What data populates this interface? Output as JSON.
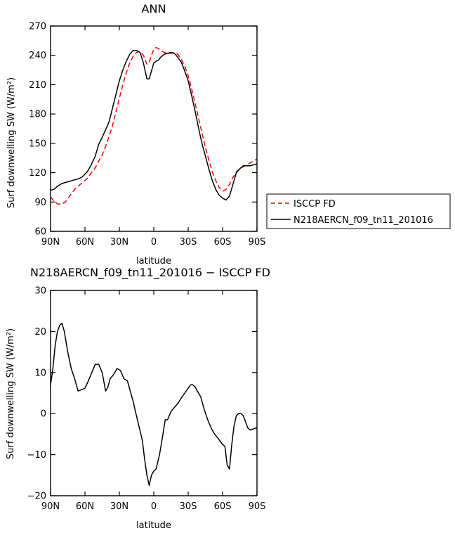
{
  "chart_data": [
    {
      "type": "line",
      "title": "ANN",
      "xlabel": "latitude",
      "ylabel": "Surf downwelling SW (W/m²)",
      "ylim": [
        60,
        270
      ],
      "yticks": [
        60,
        90,
        120,
        150,
        180,
        210,
        240,
        270
      ],
      "xlim": [
        90,
        -90
      ],
      "xticks": [
        90,
        60,
        30,
        0,
        -30,
        -60,
        -90
      ],
      "xtick_labels": [
        "90N",
        "60N",
        "30N",
        "0",
        "30S",
        "60S",
        "90S"
      ],
      "grid": false,
      "legend_placement": "right",
      "series": [
        {
          "name": "ISCCP FD",
          "color": "#ff0000",
          "dash": "dashed",
          "x": [
            90,
            87,
            84,
            80,
            77,
            74,
            71,
            68,
            65,
            62,
            58,
            55,
            51,
            48,
            45,
            42,
            39,
            36,
            33,
            30,
            27,
            24,
            21,
            18,
            15,
            12,
            9,
            6,
            4,
            2,
            0,
            -2,
            -4,
            -6,
            -9,
            -12,
            -15,
            -18,
            -21,
            -24,
            -27,
            -30,
            -33,
            -36,
            -39,
            -42,
            -45,
            -48,
            -51,
            -54,
            -57,
            -60,
            -63,
            -66,
            -69,
            -72,
            -75,
            -78,
            -81,
            -84,
            -87,
            -90
          ],
          "y": [
            95,
            91,
            88,
            88,
            90,
            95,
            100,
            104,
            107,
            110,
            114,
            119,
            125,
            132,
            138,
            147,
            157,
            168,
            182,
            196,
            210,
            222,
            232,
            239,
            243,
            244,
            240,
            231,
            233,
            240,
            246,
            248,
            247,
            245,
            243,
            242,
            242,
            243,
            241,
            236,
            229,
            219,
            206,
            191,
            176,
            161,
            146,
            133,
            121,
            112,
            105,
            101,
            103,
            108,
            115,
            121,
            124,
            126,
            128,
            130,
            132,
            134
          ]
        },
        {
          "name": "N218AERCN_f09_tn11_201016",
          "color": "#000000",
          "dash": "solid",
          "x": [
            90,
            87,
            84,
            80,
            77,
            74,
            71,
            68,
            65,
            62,
            58,
            55,
            51,
            48,
            45,
            42,
            39,
            36,
            33,
            30,
            27,
            24,
            21,
            18,
            15,
            12,
            9,
            6,
            4,
            2,
            0,
            -2,
            -4,
            -6,
            -9,
            -12,
            -15,
            -18,
            -21,
            -24,
            -27,
            -30,
            -33,
            -36,
            -39,
            -42,
            -45,
            -48,
            -51,
            -54,
            -57,
            -60,
            -63,
            -66,
            -69,
            -72,
            -75,
            -78,
            -81,
            -84,
            -87,
            -90
          ],
          "y": [
            102,
            103,
            106,
            109,
            110,
            111,
            112,
            113,
            114,
            116,
            121,
            127,
            137,
            149,
            156,
            164,
            172,
            186,
            200,
            214,
            225,
            234,
            241,
            245,
            245,
            243,
            232,
            216,
            216,
            224,
            232,
            234,
            235,
            238,
            241,
            242,
            243,
            242,
            238,
            233,
            224,
            214,
            199,
            183,
            166,
            150,
            137,
            124,
            112,
            103,
            97,
            94,
            92,
            96,
            108,
            120,
            124,
            127,
            127,
            127,
            128,
            129
          ]
        }
      ]
    },
    {
      "type": "line",
      "title": "N218AERCN_f09_tn11_201016 − ISCCP FD",
      "xlabel": "latitude",
      "ylabel": "Surf downwelling SW (W/m²)",
      "ylim": [
        -20,
        30
      ],
      "yticks": [
        -20,
        -10,
        0,
        10,
        20,
        30
      ],
      "ytick_labels": [
        "−20",
        "−10",
        "0",
        "10",
        "20",
        "30"
      ],
      "xlim": [
        90,
        -90
      ],
      "xticks": [
        90,
        60,
        30,
        0,
        -30,
        -60,
        -90
      ],
      "xtick_labels": [
        "90N",
        "60N",
        "30N",
        "0",
        "30S",
        "60S",
        "90S"
      ],
      "grid": false,
      "series": [
        {
          "color": "#000000",
          "dash": "solid",
          "x": [
            90,
            88,
            86,
            84,
            82,
            80,
            78,
            75,
            72,
            69,
            66,
            63,
            60,
            57,
            54,
            51,
            48,
            45,
            42,
            40,
            38,
            35,
            32,
            29,
            26,
            23,
            20,
            18,
            16,
            13,
            10,
            8,
            6,
            4,
            2,
            0,
            -2,
            -5,
            -8,
            -10,
            -12,
            -15,
            -18,
            -21,
            -24,
            -27,
            -30,
            -32,
            -34,
            -36,
            -38,
            -41,
            -44,
            -47,
            -50,
            -53,
            -56,
            -58,
            -60,
            -62,
            -64,
            -66,
            -68,
            -70,
            -72,
            -74,
            -76,
            -78,
            -80,
            -82,
            -84,
            -86,
            -88,
            -90
          ],
          "y": [
            7,
            11,
            16.5,
            20,
            21.5,
            22,
            20,
            15,
            11,
            8.5,
            5.5,
            5.8,
            6.2,
            8,
            10,
            12,
            12,
            10,
            5.5,
            6.5,
            8.5,
            9.5,
            11,
            10.5,
            8.5,
            8,
            5,
            3,
            0.5,
            -3,
            -6.5,
            -11,
            -15,
            -17.5,
            -15,
            -14,
            -13.5,
            -10,
            -5,
            -1.5,
            -1.5,
            0.5,
            1.5,
            2.5,
            3.8,
            5,
            6.2,
            7,
            7,
            6.5,
            5.5,
            4,
            1,
            -1.5,
            -3.5,
            -5,
            -6,
            -6.8,
            -7.5,
            -8,
            -12.5,
            -13.5,
            -7.5,
            -3,
            -0.5,
            0,
            0,
            -0.5,
            -2,
            -3.5,
            -4,
            -3.8,
            -3.6,
            -3.5
          ]
        }
      ]
    }
  ]
}
